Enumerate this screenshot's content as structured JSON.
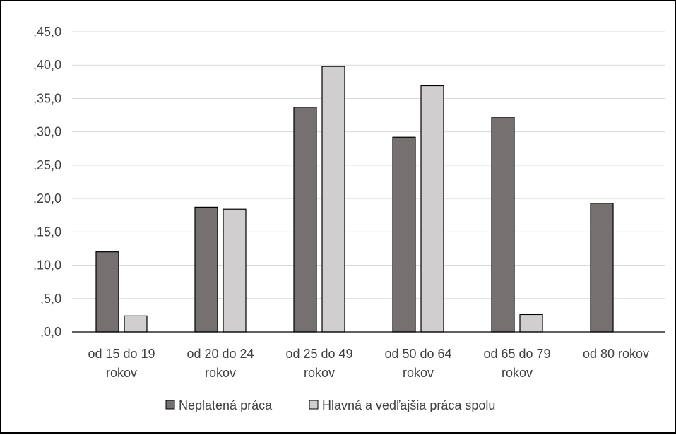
{
  "chart_data": {
    "type": "bar",
    "categories": [
      [
        "od 15 do 19",
        "rokov"
      ],
      [
        "od 20 do 24",
        "rokov"
      ],
      [
        "od 25 do 49",
        "rokov"
      ],
      [
        "od 50 do 64",
        "rokov"
      ],
      [
        "od 65 do 79",
        "rokov"
      ],
      [
        "od 80 rokov"
      ]
    ],
    "series": [
      {
        "name": "Neplatená práca",
        "values": [
          12.0,
          18.7,
          33.7,
          29.2,
          32.2,
          19.3
        ],
        "color": "#767171"
      },
      {
        "name": "Hlavná a vedľajšia práca spolu",
        "values": [
          2.4,
          18.4,
          39.8,
          36.9,
          2.6,
          null
        ],
        "color": "#d0cece"
      }
    ],
    "yticks": [
      ",0,0",
      ",5,0",
      ",10,0",
      ",15,0",
      ",20,0",
      ",25,0",
      ",30,0",
      ",35,0",
      ",40,0",
      ",45,0"
    ],
    "ylim": [
      0,
      45
    ],
    "grid": true,
    "legend_position": "bottom",
    "title": "",
    "xlabel": "",
    "ylabel": ""
  },
  "colors": {
    "grid": "#d9d9d9",
    "axis": "#000000",
    "bar_outline": "#000000",
    "text": "#404040"
  }
}
